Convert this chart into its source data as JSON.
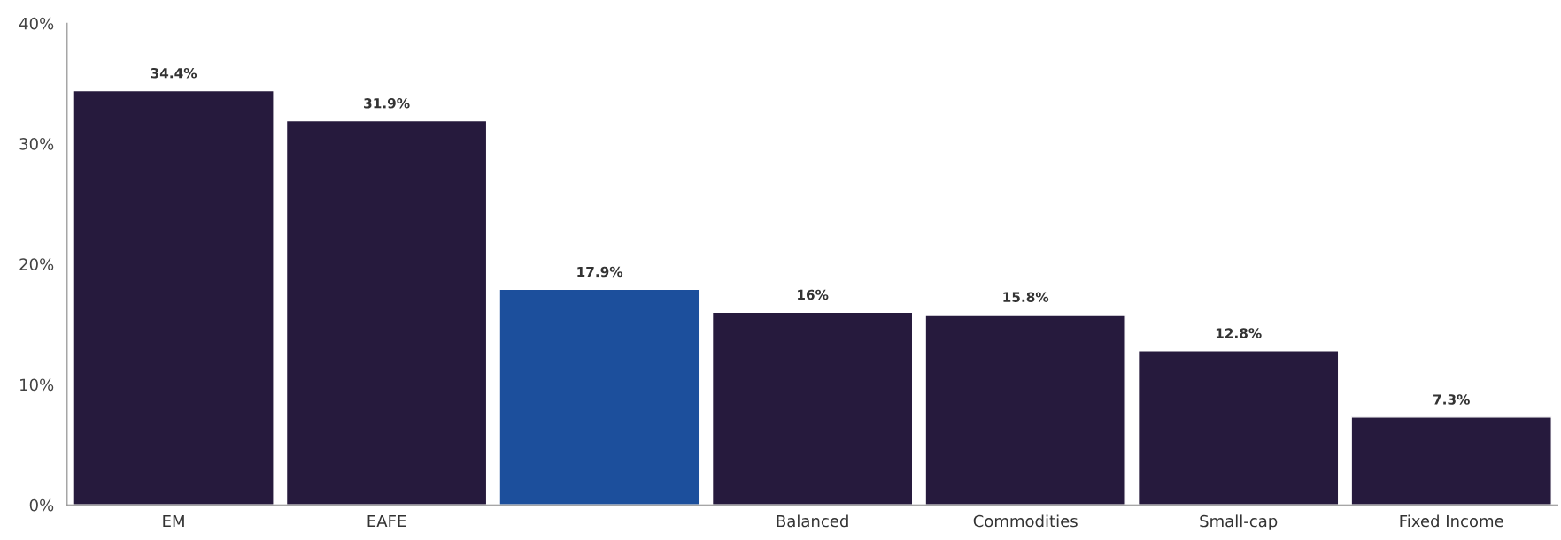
{
  "chart_data": {
    "type": "bar",
    "categories": [
      "EM",
      "EAFE",
      null,
      "Balanced",
      "Commodities",
      "Small-cap",
      "Fixed Income"
    ],
    "values": [
      34.4,
      31.9,
      17.9,
      16,
      15.8,
      12.8,
      7.3
    ],
    "colors": [
      "#261a3d",
      "#261a3d",
      "#1c4f9c",
      "#261a3d",
      "#261a3d",
      "#261a3d",
      "#261a3d"
    ],
    "value_labels": [
      "34.4%",
      "31.9%",
      "17.9%",
      "16%",
      "15.8%",
      "12.8%",
      "7.3%"
    ],
    "ylim": [
      0,
      40
    ],
    "yticks": [
      {
        "value": 0,
        "label": "0%"
      },
      {
        "value": 10,
        "label": "10%"
      },
      {
        "value": 20,
        "label": "20%"
      },
      {
        "value": 30,
        "label": "30%"
      },
      {
        "value": 40,
        "label": "40%"
      }
    ],
    "grid": false,
    "legend": false
  }
}
